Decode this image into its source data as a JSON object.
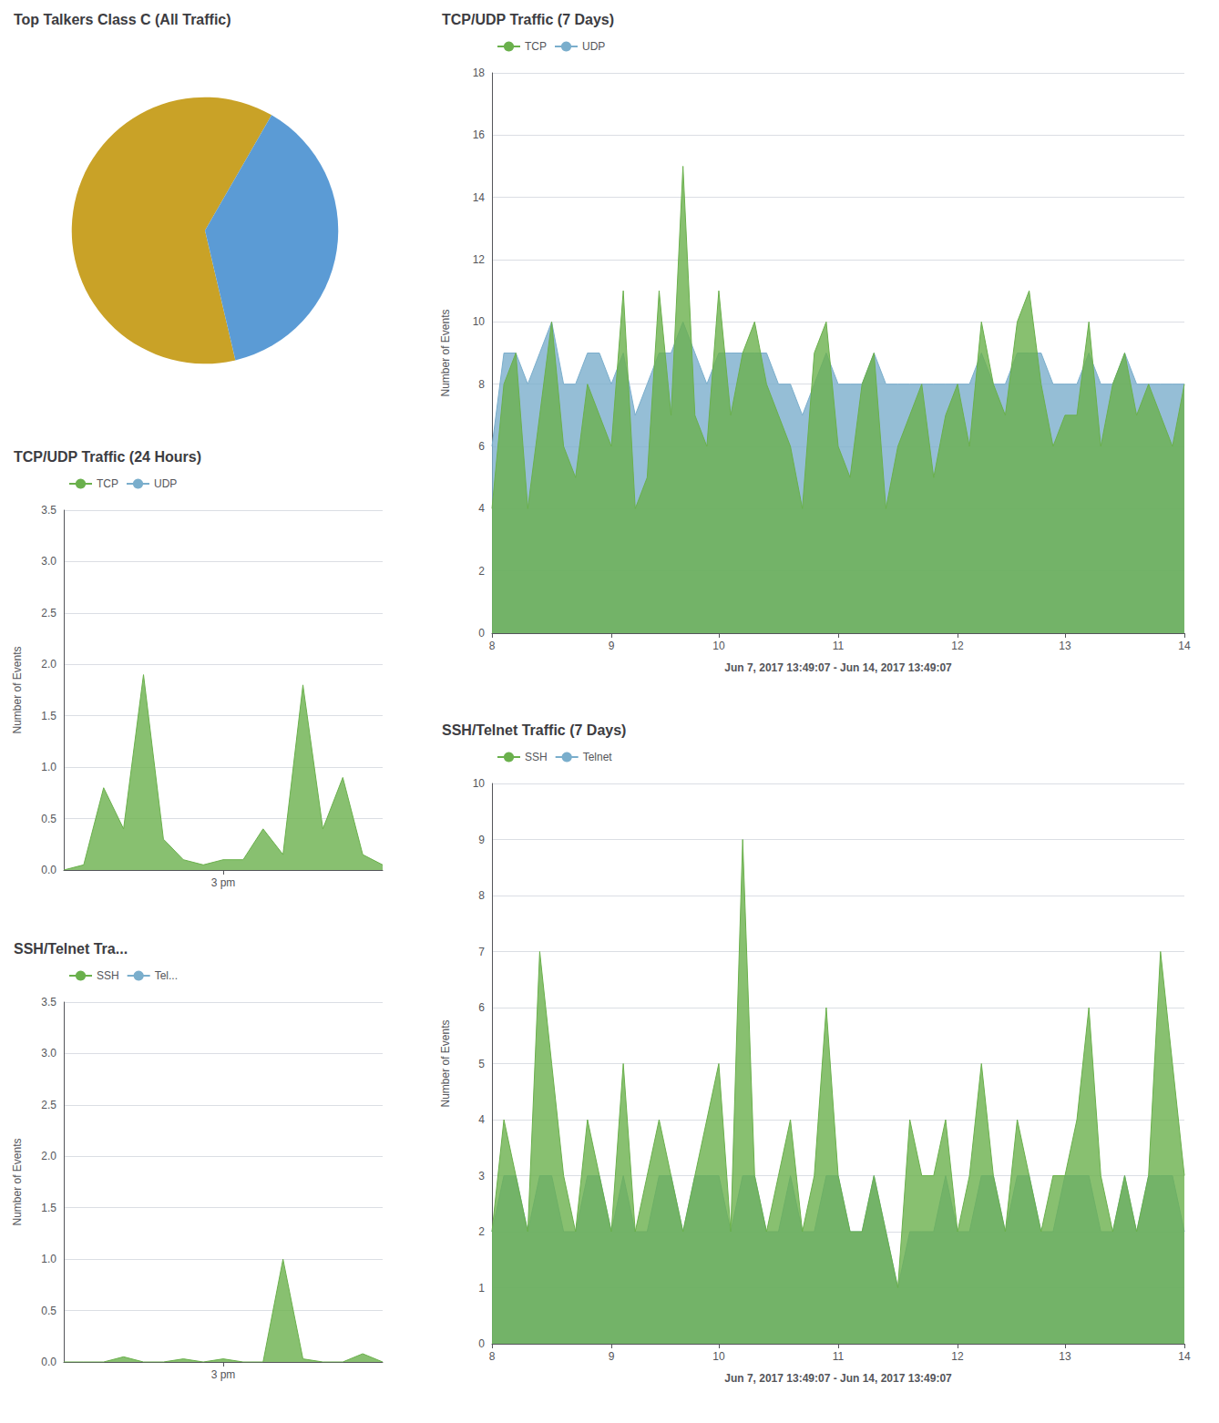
{
  "chart_data": [
    {
      "type": "pie",
      "title": "Top Talkers Class C (All Traffic)",
      "values": [
        62,
        38
      ],
      "colors": [
        "#c9a227",
        "#5b9bd5"
      ]
    },
    {
      "type": "area",
      "title": "TCP/UDP Traffic (24 Hours)",
      "categories": [
        null,
        null,
        null,
        null,
        null,
        null,
        null,
        null,
        "3 pm",
        null,
        null,
        null,
        null,
        null,
        null,
        null,
        null
      ],
      "series": [
        {
          "name": "TCP",
          "color": "#6ab04c",
          "values": [
            0,
            0.05,
            0.8,
            0.4,
            1.9,
            0.3,
            0.1,
            0.05,
            0.1,
            0.1,
            0.4,
            0.15,
            1.8,
            0.4,
            0.9,
            0.15,
            0.05
          ]
        },
        {
          "name": "UDP",
          "color": "#7aaecc",
          "values": [
            null,
            null,
            null,
            null,
            null,
            null,
            null,
            null,
            null,
            null,
            null,
            null,
            null,
            null,
            null,
            null,
            null
          ]
        }
      ],
      "ylabel": "Number of Events",
      "ylim": [
        0,
        3.5
      ],
      "yticks": [
        {
          "value": 0,
          "label": "0.0"
        },
        0.5,
        {
          "value": 1,
          "label": "1.0"
        },
        1.5,
        {
          "value": 2,
          "label": "2.0"
        },
        2.5,
        {
          "value": 3,
          "label": "3.0"
        },
        3.5
      ],
      "grid": true,
      "legend": "upper left"
    },
    {
      "type": "area",
      "title": "SSH/Telnet Tra...",
      "categories": [
        null,
        null,
        null,
        null,
        null,
        null,
        null,
        null,
        "3 pm",
        null,
        null,
        null,
        null,
        null,
        null,
        null,
        null
      ],
      "series": [
        {
          "name": "SSH",
          "color": "#6ab04c",
          "values": [
            0,
            0,
            0,
            0.05,
            0,
            0,
            0.03,
            0,
            0.03,
            0,
            0,
            1.0,
            0.03,
            0,
            0,
            0.08,
            0
          ]
        },
        {
          "name": "Tel...",
          "color": "#7aaecc",
          "values": [
            null,
            null,
            null,
            null,
            null,
            null,
            null,
            null,
            null,
            null,
            null,
            null,
            null,
            null,
            null,
            null,
            null
          ]
        }
      ],
      "ylabel": "Number of Events",
      "ylim": [
        0,
        3.5
      ],
      "yticks": [
        {
          "value": 0,
          "label": "0.0"
        },
        0.5,
        {
          "value": 1,
          "label": "1.0"
        },
        1.5,
        {
          "value": 2,
          "label": "2.0"
        },
        2.5,
        {
          "value": 3,
          "label": "3.0"
        },
        3.5
      ],
      "grid": true,
      "legend": "upper left"
    },
    {
      "type": "area",
      "title": "TCP/UDP Traffic (7 Days)",
      "categories": [
        "8",
        null,
        null,
        null,
        null,
        null,
        null,
        null,
        null,
        null,
        "9",
        null,
        null,
        null,
        null,
        null,
        null,
        null,
        null,
        "10",
        null,
        null,
        null,
        null,
        null,
        null,
        null,
        null,
        null,
        "11",
        null,
        null,
        null,
        null,
        null,
        null,
        null,
        null,
        null,
        "12",
        null,
        null,
        null,
        null,
        null,
        null,
        null,
        null,
        "13",
        null,
        null,
        null,
        null,
        null,
        null,
        null,
        null,
        null,
        "14"
      ],
      "series": [
        {
          "name": "TCP",
          "color": "#6ab04c",
          "values": [
            4,
            8,
            9,
            4,
            7,
            10,
            6,
            5,
            8,
            7,
            6,
            11,
            4,
            5,
            11,
            7,
            15,
            7,
            6,
            11,
            7,
            9,
            10,
            8,
            7,
            6,
            4,
            9,
            10,
            6,
            5,
            8,
            9,
            4,
            6,
            7,
            8,
            5,
            7,
            8,
            6,
            10,
            8,
            7,
            10,
            11,
            8,
            6,
            7,
            7,
            10,
            6,
            8,
            9,
            7,
            8,
            7,
            6,
            8
          ]
        },
        {
          "name": "UDP",
          "color": "#7aaecc",
          "values": [
            6,
            9,
            9,
            8,
            9,
            10,
            8,
            8,
            9,
            9,
            8,
            9,
            7,
            8,
            9,
            9,
            10,
            9,
            8,
            9,
            9,
            9,
            9,
            9,
            8,
            8,
            7,
            8,
            9,
            8,
            8,
            8,
            9,
            8,
            8,
            8,
            8,
            8,
            8,
            8,
            8,
            9,
            8,
            8,
            9,
            9,
            9,
            8,
            8,
            8,
            9,
            8,
            8,
            9,
            8,
            8,
            8,
            8,
            8
          ]
        }
      ],
      "xlabel": "Jun 7, 2017 13:49:07 - Jun 14, 2017 13:49:07",
      "ylabel": "Number of Events",
      "ylim": [
        0,
        18
      ],
      "yticks": [
        0,
        2,
        4,
        6,
        8,
        10,
        12,
        14,
        16,
        18
      ],
      "grid": true,
      "legend": "upper left"
    },
    {
      "type": "area",
      "title": "SSH/Telnet Traffic (7 Days)",
      "categories": [
        "8",
        null,
        null,
        null,
        null,
        null,
        null,
        null,
        null,
        null,
        "9",
        null,
        null,
        null,
        null,
        null,
        null,
        null,
        null,
        "10",
        null,
        null,
        null,
        null,
        null,
        null,
        null,
        null,
        null,
        "11",
        null,
        null,
        null,
        null,
        null,
        null,
        null,
        null,
        null,
        "12",
        null,
        null,
        null,
        null,
        null,
        null,
        null,
        null,
        "13",
        null,
        null,
        null,
        null,
        null,
        null,
        null,
        null,
        null,
        "14"
      ],
      "series": [
        {
          "name": "SSH",
          "color": "#6ab04c",
          "values": [
            2,
            4,
            3,
            2,
            7,
            5,
            3,
            2,
            4,
            3,
            2,
            5,
            2,
            3,
            4,
            3,
            2,
            3,
            4,
            5,
            2,
            9,
            3,
            2,
            3,
            4,
            2,
            3,
            6,
            3,
            2,
            2,
            3,
            2,
            1,
            4,
            3,
            3,
            4,
            2,
            3,
            5,
            3,
            2,
            4,
            3,
            2,
            3,
            3,
            4,
            6,
            3,
            2,
            3,
            2,
            3,
            7,
            5,
            3
          ]
        },
        {
          "name": "Telnet",
          "color": "#7aaecc",
          "values": [
            2,
            3,
            3,
            2,
            3,
            3,
            2,
            2,
            3,
            3,
            2,
            3,
            2,
            2,
            3,
            3,
            2,
            3,
            3,
            3,
            2,
            3,
            3,
            2,
            2,
            3,
            2,
            2,
            3,
            3,
            2,
            2,
            3,
            2,
            1,
            2,
            2,
            2,
            3,
            2,
            2,
            3,
            3,
            2,
            3,
            3,
            2,
            2,
            3,
            3,
            3,
            2,
            2,
            3,
            2,
            3,
            3,
            3,
            2
          ]
        }
      ],
      "xlabel": "Jun 7, 2017 13:49:07 - Jun 14, 2017 13:49:07",
      "ylabel": "Number of Events",
      "ylim": [
        0,
        10
      ],
      "yticks": [
        0,
        1,
        2,
        3,
        4,
        5,
        6,
        7,
        8,
        9,
        10
      ],
      "grid": true,
      "legend": "upper left"
    }
  ]
}
